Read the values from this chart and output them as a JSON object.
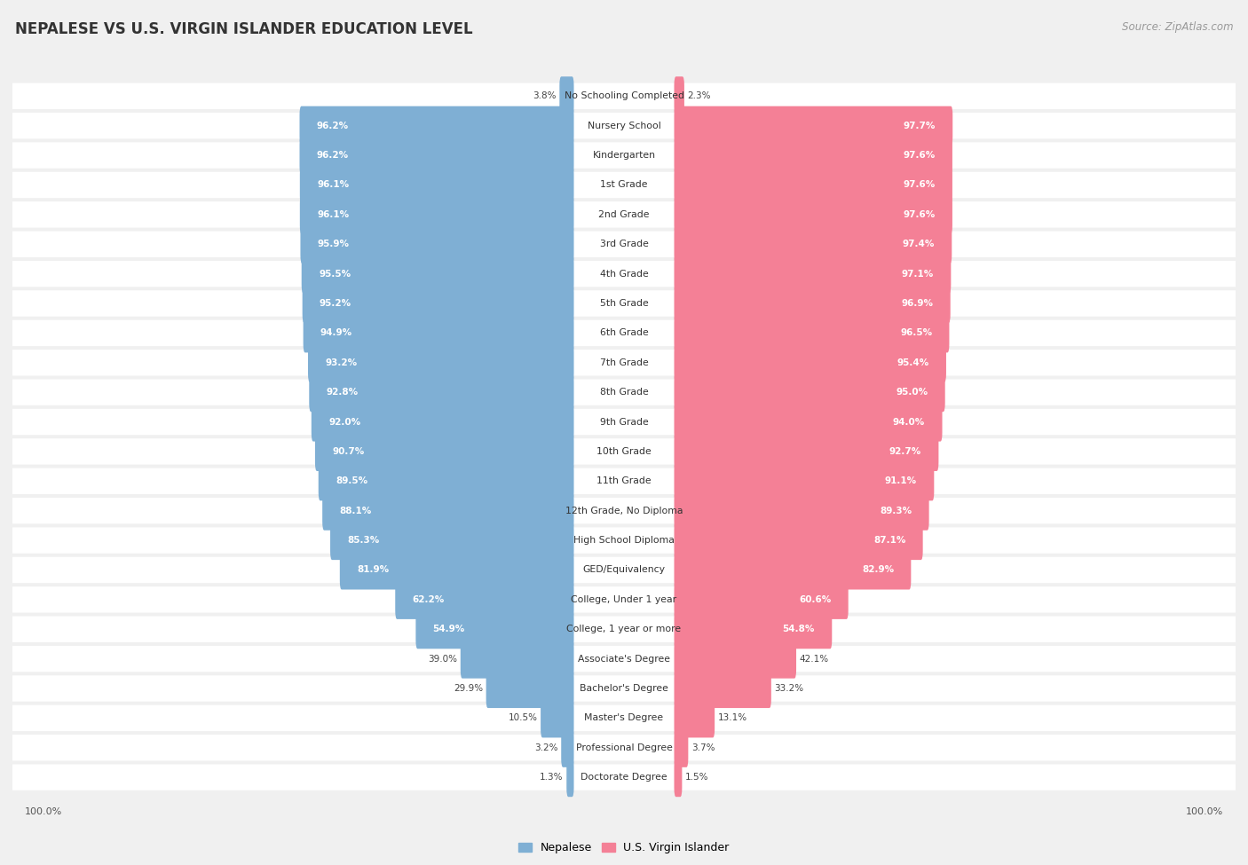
{
  "title": "NEPALESE VS U.S. VIRGIN ISLANDER EDUCATION LEVEL",
  "source": "Source: ZipAtlas.com",
  "categories": [
    "No Schooling Completed",
    "Nursery School",
    "Kindergarten",
    "1st Grade",
    "2nd Grade",
    "3rd Grade",
    "4th Grade",
    "5th Grade",
    "6th Grade",
    "7th Grade",
    "8th Grade",
    "9th Grade",
    "10th Grade",
    "11th Grade",
    "12th Grade, No Diploma",
    "High School Diploma",
    "GED/Equivalency",
    "College, Under 1 year",
    "College, 1 year or more",
    "Associate's Degree",
    "Bachelor's Degree",
    "Master's Degree",
    "Professional Degree",
    "Doctorate Degree"
  ],
  "nepalese": [
    3.8,
    96.2,
    96.2,
    96.1,
    96.1,
    95.9,
    95.5,
    95.2,
    94.9,
    93.2,
    92.8,
    92.0,
    90.7,
    89.5,
    88.1,
    85.3,
    81.9,
    62.2,
    54.9,
    39.0,
    29.9,
    10.5,
    3.2,
    1.3
  ],
  "usvi": [
    2.3,
    97.7,
    97.6,
    97.6,
    97.6,
    97.4,
    97.1,
    96.9,
    96.5,
    95.4,
    95.0,
    94.0,
    92.7,
    91.1,
    89.3,
    87.1,
    82.9,
    60.6,
    54.8,
    42.1,
    33.2,
    13.1,
    3.7,
    1.5
  ],
  "nepalese_color": "#7fafd4",
  "usvi_color": "#f48096",
  "background_color": "#f0f0f0",
  "row_bg_color": "#ffffff",
  "title_fontsize": 12,
  "source_fontsize": 8.5,
  "label_fontsize": 7.8,
  "value_fontsize": 7.5,
  "legend_nepalese": "Nepalese",
  "legend_usvi": "U.S. Virgin Islander",
  "max_val": 100.0,
  "scale": 0.46
}
